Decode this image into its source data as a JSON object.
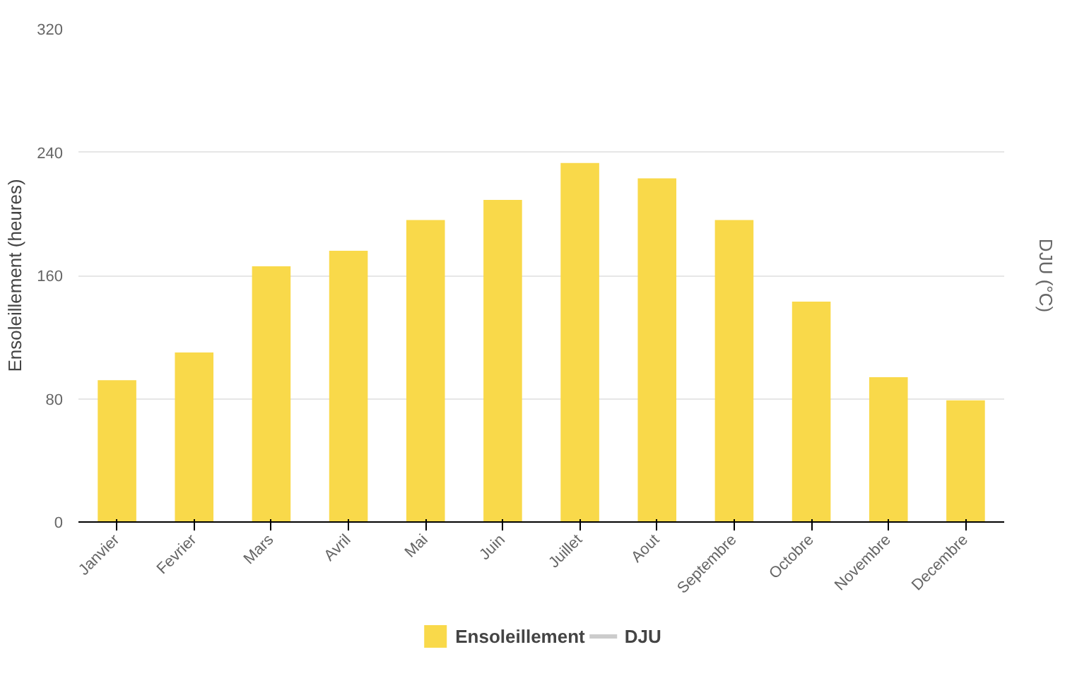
{
  "chart_data": {
    "type": "bar",
    "ylabel": "Ensoleillement (heures)",
    "y2label": "DJU (°C)",
    "categories": [
      "Janvier",
      "Fevrier",
      "Mars",
      "Avril",
      "Mai",
      "Juin",
      "Juillet",
      "Aout",
      "Septembre",
      "Octobre",
      "Novembre",
      "Decembre"
    ],
    "series": [
      {
        "name": "Ensoleillement",
        "color": "#f9d94a",
        "values": [
          92,
          110,
          166,
          176,
          196,
          209,
          233,
          223,
          196,
          143,
          94,
          79
        ]
      },
      {
        "name": "DJU",
        "color": "#cccccc",
        "type": "line",
        "axis": "y2",
        "values": [
          null,
          null,
          null,
          null,
          null,
          null,
          null,
          null,
          null,
          null,
          null,
          null
        ]
      }
    ],
    "ylim": [
      0,
      320
    ],
    "yticks": [
      0,
      80,
      160,
      240,
      320
    ],
    "grid": "y",
    "legend": "bottom"
  }
}
